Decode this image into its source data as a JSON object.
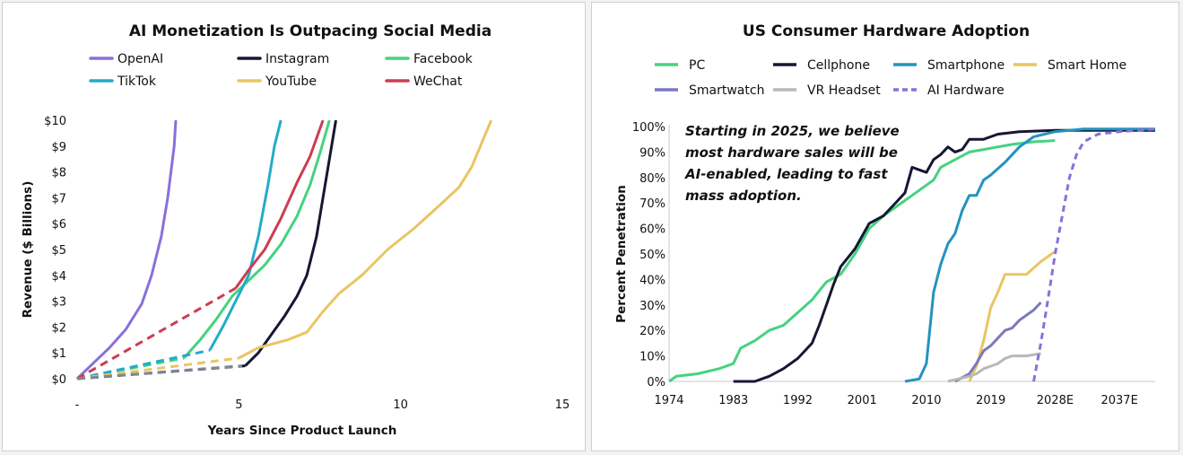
{
  "chart_data": [
    {
      "type": "line",
      "title": "AI Monetization Is Outpacing Social Media",
      "xlabel": "Years Since Product Launch",
      "ylabel": "Revenue ($ Billions)",
      "xlim": [
        0,
        15
      ],
      "ylim": [
        0,
        10
      ],
      "x_ticks": [
        {
          "v": 0,
          "label": "-"
        },
        {
          "v": 5,
          "label": "5"
        },
        {
          "v": 10,
          "label": "10"
        },
        {
          "v": 15,
          "label": "15"
        }
      ],
      "y_ticks": [
        {
          "v": 0,
          "label": "$0"
        },
        {
          "v": 1,
          "label": "$1"
        },
        {
          "v": 2,
          "label": "$2"
        },
        {
          "v": 3,
          "label": "$3"
        },
        {
          "v": 4,
          "label": "$4"
        },
        {
          "v": 5,
          "label": "$5"
        },
        {
          "v": 6,
          "label": "$6"
        },
        {
          "v": 7,
          "label": "$7"
        },
        {
          "v": 8,
          "label": "$8"
        },
        {
          "v": 9,
          "label": "$9"
        },
        {
          "v": 10,
          "label": "$10"
        }
      ],
      "legend_placement": "top",
      "grid": false,
      "series": [
        {
          "name": "OpenAI",
          "color": "#8a6fdc",
          "dashed": [],
          "solid": [
            [
              0,
              0
            ],
            [
              0.5,
              0.6
            ],
            [
              1,
              1.2
            ],
            [
              1.5,
              1.9
            ],
            [
              2,
              2.9
            ],
            [
              2.3,
              4
            ],
            [
              2.6,
              5.5
            ],
            [
              2.8,
              7
            ],
            [
              3,
              9
            ],
            [
              3.05,
              10
            ]
          ]
        },
        {
          "name": "Instagram",
          "color": "#151733",
          "dashed": [
            [
              0,
              0
            ],
            [
              5.2,
              0.5
            ]
          ],
          "solid": [
            [
              5.2,
              0.5
            ],
            [
              5.6,
              1
            ],
            [
              6,
              1.7
            ],
            [
              6.4,
              2.4
            ],
            [
              6.8,
              3.2
            ],
            [
              7.1,
              4
            ],
            [
              7.4,
              5.5
            ],
            [
              7.6,
              7
            ],
            [
              7.8,
              8.5
            ],
            [
              8,
              10
            ]
          ]
        },
        {
          "name": "Facebook",
          "color": "#45d27f",
          "dashed": [
            [
              0,
              0
            ],
            [
              3.3,
              0.8
            ]
          ],
          "solid": [
            [
              3.3,
              0.8
            ],
            [
              3.8,
              1.5
            ],
            [
              4.3,
              2.3
            ],
            [
              4.8,
              3.2
            ],
            [
              5.3,
              3.8
            ],
            [
              5.8,
              4.4
            ],
            [
              6.3,
              5.2
            ],
            [
              6.8,
              6.3
            ],
            [
              7.2,
              7.5
            ],
            [
              7.5,
              8.7
            ],
            [
              7.8,
              10
            ]
          ]
        },
        {
          "name": "TikTok",
          "color": "#22acc8",
          "dashed": [
            [
              0,
              0
            ],
            [
              4.1,
              1.1
            ]
          ],
          "solid": [
            [
              4.1,
              1.1
            ],
            [
              4.5,
              2
            ],
            [
              4.9,
              3
            ],
            [
              5.3,
              4
            ],
            [
              5.6,
              5.5
            ],
            [
              5.9,
              7.5
            ],
            [
              6.1,
              9
            ],
            [
              6.3,
              10
            ]
          ]
        },
        {
          "name": "YouTube",
          "color": "#e9c563",
          "dashed": [
            [
              0,
              0
            ],
            [
              5,
              0.8
            ]
          ],
          "solid": [
            [
              5,
              0.8
            ],
            [
              5.6,
              1.2
            ],
            [
              6.5,
              1.5
            ],
            [
              7.1,
              1.8
            ],
            [
              7.6,
              2.6
            ],
            [
              8.1,
              3.3
            ],
            [
              8.8,
              4
            ],
            [
              9.6,
              5
            ],
            [
              10.4,
              5.8
            ],
            [
              11.2,
              6.7
            ],
            [
              11.8,
              7.4
            ],
            [
              12.2,
              8.2
            ],
            [
              12.5,
              9.1
            ],
            [
              12.8,
              10
            ]
          ]
        },
        {
          "name": "WeChat",
          "color": "#cc3d52",
          "dashed": [
            [
              0,
              0
            ],
            [
              4.9,
              3.5
            ]
          ],
          "solid": [
            [
              4.9,
              3.5
            ],
            [
              5.3,
              4.2
            ],
            [
              5.8,
              5
            ],
            [
              6.3,
              6.2
            ],
            [
              6.8,
              7.6
            ],
            [
              7.2,
              8.6
            ],
            [
              7.6,
              10
            ]
          ]
        },
        {
          "name": "",
          "color": "#7f8694",
          "dashed": [
            [
              0,
              0
            ],
            [
              5.1,
              0.5
            ]
          ],
          "solid": []
        }
      ]
    },
    {
      "type": "line",
      "title": "US Consumer Hardware Adoption",
      "ylabel": "Percent Penetration",
      "xlim": [
        1974,
        2042
      ],
      "ylim": [
        0,
        100
      ],
      "x_ticks": [
        {
          "v": 1974,
          "label": "1974"
        },
        {
          "v": 1983,
          "label": "1983"
        },
        {
          "v": 1992,
          "label": "1992"
        },
        {
          "v": 2001,
          "label": "2001"
        },
        {
          "v": 2010,
          "label": "2010"
        },
        {
          "v": 2019,
          "label": "2019"
        },
        {
          "v": 2028,
          "label": "2028E"
        },
        {
          "v": 2037,
          "label": "2037E"
        }
      ],
      "y_ticks": [
        {
          "v": 0,
          "label": "0%"
        },
        {
          "v": 10,
          "label": "10%"
        },
        {
          "v": 20,
          "label": "20%"
        },
        {
          "v": 30,
          "label": "30%"
        },
        {
          "v": 40,
          "label": "40%"
        },
        {
          "v": 50,
          "label": "50%"
        },
        {
          "v": 60,
          "label": "60%"
        },
        {
          "v": 70,
          "label": "70%"
        },
        {
          "v": 80,
          "label": "80%"
        },
        {
          "v": 90,
          "label": "90%"
        },
        {
          "v": 100,
          "label": "100%"
        }
      ],
      "annotation": [
        "Starting in 2025, we believe",
        "most hardware sales will be",
        "AI-enabled, leading to fast",
        "mass adoption."
      ],
      "legend_placement": "top",
      "grid": false,
      "series": [
        {
          "name": "PC",
          "color": "#45d27f",
          "dashed": false,
          "points": [
            [
              1974,
              0
            ],
            [
              1975,
              2
            ],
            [
              1978,
              3
            ],
            [
              1981,
              5
            ],
            [
              1983,
              7
            ],
            [
              1984,
              13
            ],
            [
              1986,
              16
            ],
            [
              1988,
              20
            ],
            [
              1990,
              22
            ],
            [
              1992,
              27
            ],
            [
              1994,
              32
            ],
            [
              1996,
              39
            ],
            [
              1998,
              42
            ],
            [
              2000,
              50
            ],
            [
              2002,
              60
            ],
            [
              2004,
              65
            ],
            [
              2006,
              69
            ],
            [
              2008,
              73
            ],
            [
              2010,
              77
            ],
            [
              2011,
              79
            ],
            [
              2012,
              84
            ],
            [
              2014,
              87
            ],
            [
              2016,
              90
            ],
            [
              2018,
              91
            ],
            [
              2020,
              92
            ],
            [
              2022,
              93
            ],
            [
              2025,
              94
            ],
            [
              2028,
              94.5
            ]
          ]
        },
        {
          "name": "Cellphone",
          "color": "#151733",
          "dashed": false,
          "points": [
            [
              1983,
              0
            ],
            [
              1986,
              0
            ],
            [
              1988,
              2
            ],
            [
              1990,
              5
            ],
            [
              1992,
              9
            ],
            [
              1994,
              15
            ],
            [
              1995,
              22
            ],
            [
              1996,
              30
            ],
            [
              1997,
              38
            ],
            [
              1998,
              45
            ],
            [
              2000,
              52
            ],
            [
              2002,
              62
            ],
            [
              2004,
              65
            ],
            [
              2006,
              71
            ],
            [
              2007,
              74
            ],
            [
              2008,
              84
            ],
            [
              2009,
              83
            ],
            [
              2010,
              82
            ],
            [
              2011,
              87
            ],
            [
              2012,
              89
            ],
            [
              2013,
              92
            ],
            [
              2014,
              90
            ],
            [
              2015,
              91
            ],
            [
              2016,
              95
            ],
            [
              2018,
              95
            ],
            [
              2020,
              97
            ],
            [
              2023,
              98
            ],
            [
              2028,
              98.5
            ],
            [
              2042,
              98.5
            ]
          ]
        },
        {
          "name": "Smartphone",
          "color": "#2493bf",
          "dashed": false,
          "points": [
            [
              2007,
              0
            ],
            [
              2009,
              1
            ],
            [
              2010,
              7
            ],
            [
              2011,
              35
            ],
            [
              2012,
              46
            ],
            [
              2013,
              54
            ],
            [
              2014,
              58
            ],
            [
              2015,
              67
            ],
            [
              2016,
              73
            ],
            [
              2017,
              73
            ],
            [
              2018,
              79
            ],
            [
              2019,
              81
            ],
            [
              2021,
              86
            ],
            [
              2023,
              92
            ],
            [
              2025,
              96
            ],
            [
              2028,
              98
            ],
            [
              2032,
              99
            ],
            [
              2042,
              99
            ]
          ]
        },
        {
          "name": "Smart Home",
          "color": "#e9c563",
          "dashed": false,
          "points": [
            [
              2016,
              0
            ],
            [
              2017,
              6
            ],
            [
              2018,
              16
            ],
            [
              2019,
              29
            ],
            [
              2020,
              35
            ],
            [
              2021,
              42
            ],
            [
              2022,
              42
            ],
            [
              2024,
              42
            ],
            [
              2026,
              47
            ],
            [
              2028,
              51
            ]
          ]
        },
        {
          "name": "Smartwatch",
          "color": "#7b79bd",
          "dashed": false,
          "points": [
            [
              2014,
              0
            ],
            [
              2016,
              3
            ],
            [
              2017,
              7
            ],
            [
              2018,
              12
            ],
            [
              2019,
              14
            ],
            [
              2020,
              17
            ],
            [
              2021,
              20
            ],
            [
              2022,
              21
            ],
            [
              2023,
              24
            ],
            [
              2024,
              26
            ],
            [
              2025,
              28
            ],
            [
              2026,
              31
            ]
          ]
        },
        {
          "name": "VR Headset",
          "color": "#b8b8b8",
          "dashed": false,
          "points": [
            [
              2013,
              0
            ],
            [
              2016,
              2
            ],
            [
              2017,
              3
            ],
            [
              2018,
              5
            ],
            [
              2019,
              6
            ],
            [
              2020,
              7
            ],
            [
              2021,
              9
            ],
            [
              2022,
              10
            ],
            [
              2024,
              10
            ],
            [
              2026,
              11
            ]
          ]
        },
        {
          "name": "AI Hardware",
          "color": "#8a6fdc",
          "dashed": true,
          "points": [
            [
              2025,
              0
            ],
            [
              2026,
              15
            ],
            [
              2027,
              32
            ],
            [
              2028,
              50
            ],
            [
              2029,
              65
            ],
            [
              2030,
              80
            ],
            [
              2031,
              89
            ],
            [
              2032,
              94
            ],
            [
              2034,
              97
            ],
            [
              2037,
              98
            ],
            [
              2042,
              99
            ]
          ]
        }
      ]
    }
  ]
}
